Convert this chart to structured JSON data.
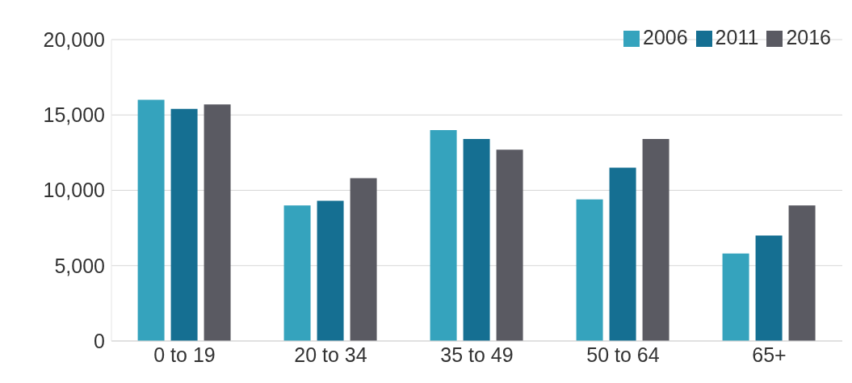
{
  "chart_data": {
    "type": "bar",
    "categories": [
      "0 to 19",
      "20 to 34",
      "35 to 49",
      "50 to 64",
      "65+"
    ],
    "series": [
      {
        "name": "2006",
        "color": "#35a3bd",
        "values": [
          16000,
          9000,
          14000,
          9400,
          5800
        ]
      },
      {
        "name": "2011",
        "color": "#156f92",
        "values": [
          15400,
          9300,
          13400,
          11500,
          7000
        ]
      },
      {
        "name": "2016",
        "color": "#5a5a62",
        "values": [
          15700,
          10800,
          12700,
          13400,
          9000
        ]
      }
    ],
    "ylim": [
      0,
      20000
    ],
    "yticks": [
      {
        "value": 0,
        "label": "0"
      },
      {
        "value": 5000,
        "label": "5,000"
      },
      {
        "value": 10000,
        "label": "10,000"
      },
      {
        "value": 15000,
        "label": "15,000"
      },
      {
        "value": 20000,
        "label": "20,000"
      }
    ],
    "grid": "y",
    "legend": "top right"
  }
}
